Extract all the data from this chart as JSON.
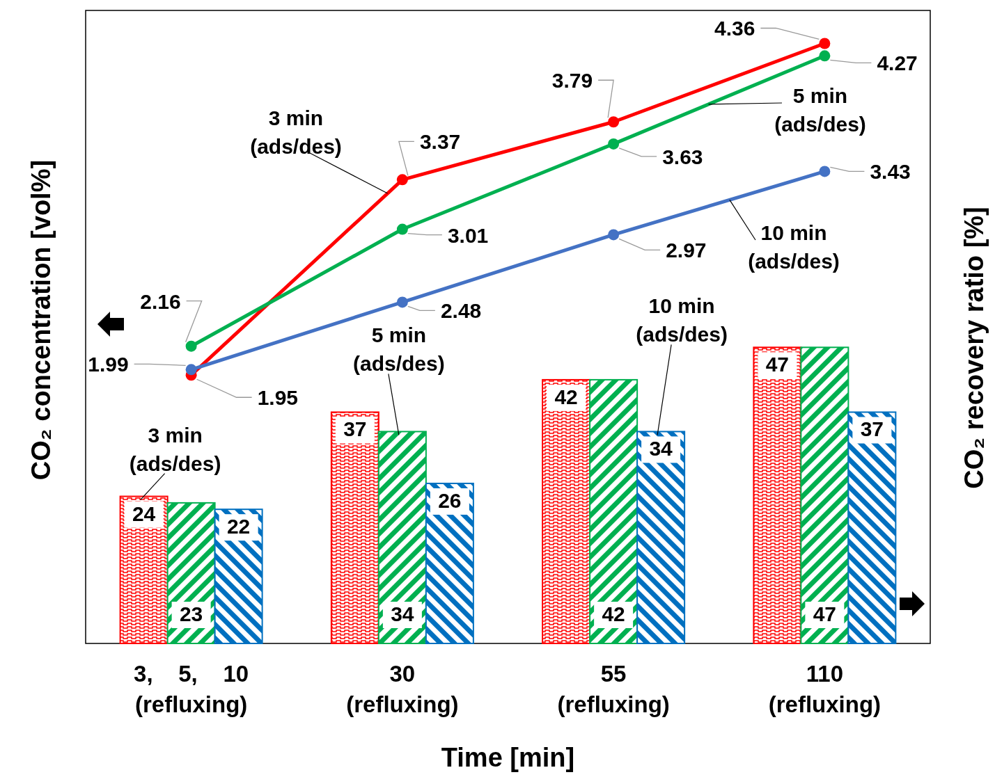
{
  "chart_data": {
    "type": "bar",
    "xlabel": "Time [min]",
    "ylabel": "CO₂ concentration [vol%]",
    "y2label": "CO₂ recovery ratio [%]",
    "categories": [
      "3,    5,    10\n(refluxing)",
      "30\n(refluxing)",
      "55\n(refluxing)",
      "110\n(refluxing)"
    ],
    "ylim": [
      0,
      4.6
    ],
    "y2lim": [
      1.3,
      99
    ],
    "tick_labels": "x",
    "data_labels": true,
    "series": [
      {
        "name": "3 min\n(ads/des)",
        "axis": "y2",
        "color": "#ff0000",
        "values": [
          24,
          37,
          42,
          47
        ]
      },
      {
        "name": "5 min\n(ads/des)",
        "axis": "y2",
        "color": "#00b050",
        "values": [
          23,
          34,
          42,
          47
        ]
      },
      {
        "name": "10 min\n(ads/des)",
        "axis": "y2",
        "color": "#0070c0",
        "values": [
          22,
          26,
          34,
          37
        ]
      },
      {
        "name": "3 min\n(ads/des)",
        "type": "line",
        "axis": "y",
        "marker": "circle",
        "color": "#ff0000",
        "values": [
          1.95,
          3.37,
          3.79,
          4.36
        ]
      },
      {
        "name": "5 min\n(ads/des)",
        "type": "line",
        "axis": "y",
        "marker": "circle",
        "color": "#00b050",
        "values": [
          2.16,
          3.01,
          3.63,
          4.27
        ]
      },
      {
        "name": "10 min\n(ads/des)",
        "type": "line",
        "axis": "y",
        "marker": "circle",
        "color": "#4472c4",
        "values": [
          1.99,
          2.48,
          2.97,
          3.43
        ]
      }
    ]
  }
}
